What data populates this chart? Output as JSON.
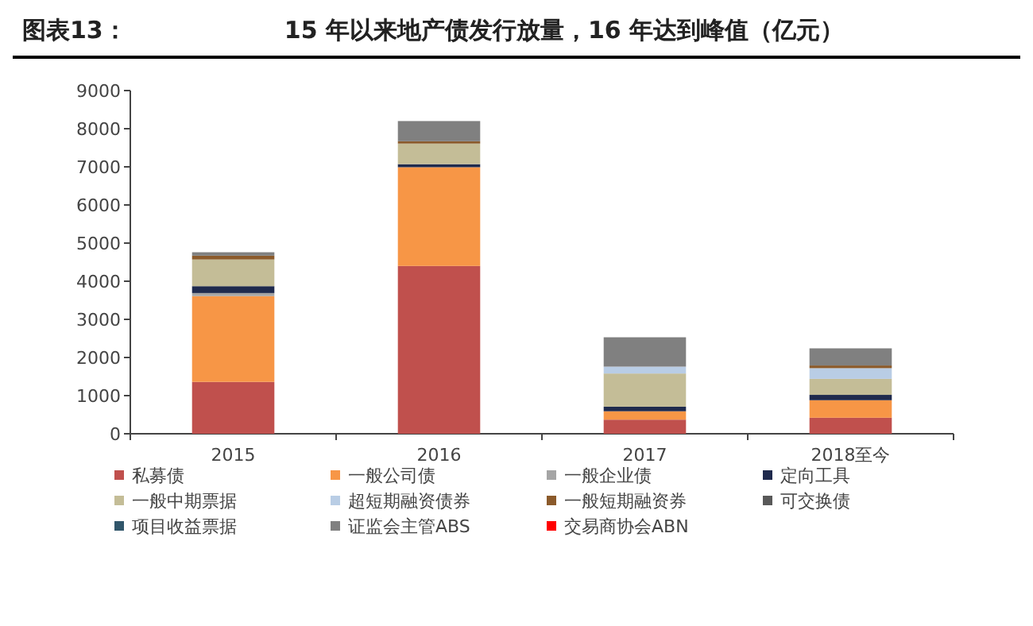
{
  "chart_data": {
    "type": "bar",
    "stacked": true,
    "title": "图表13：",
    "subtitle": "15 年以来地产债发行放量，16 年达到峰值（亿元）",
    "categories": [
      "2015",
      "2016",
      "2017",
      "2018至今"
    ],
    "series": [
      {
        "name": "私募债",
        "color": "#c0504d",
        "values": [
          1360,
          4400,
          370,
          420
        ]
      },
      {
        "name": "一般公司债",
        "color": "#f79646",
        "values": [
          2250,
          2590,
          220,
          460
        ]
      },
      {
        "name": "一般企业债",
        "color": "#a5a5a5",
        "values": [
          80,
          0,
          0,
          0
        ]
      },
      {
        "name": "定向工具",
        "color": "#1f2a4d",
        "values": [
          180,
          80,
          120,
          140
        ]
      },
      {
        "name": "一般中期票据",
        "color": "#c4bd97",
        "values": [
          700,
          540,
          870,
          420
        ]
      },
      {
        "name": "超短期融资债券",
        "color": "#b9cde5",
        "values": [
          0,
          0,
          180,
          280
        ]
      },
      {
        "name": "一般短期融资券",
        "color": "#8b5a2b",
        "values": [
          100,
          60,
          0,
          70
        ]
      },
      {
        "name": "可交换债",
        "color": "#595959",
        "values": [
          0,
          0,
          0,
          0
        ]
      },
      {
        "name": "项目收益票据",
        "color": "#31566b",
        "values": [
          0,
          0,
          0,
          0
        ]
      },
      {
        "name": "证监会主管ABS",
        "color": "#808080",
        "values": [
          90,
          530,
          770,
          450
        ]
      },
      {
        "name": "交易商协会ABN",
        "color": "#ff0000",
        "values": [
          0,
          0,
          0,
          0
        ]
      }
    ],
    "ylim": [
      0,
      9000
    ],
    "yticks": [
      0,
      1000,
      2000,
      3000,
      4000,
      5000,
      6000,
      7000,
      8000,
      9000
    ],
    "grid": false,
    "legend": "bottom"
  }
}
